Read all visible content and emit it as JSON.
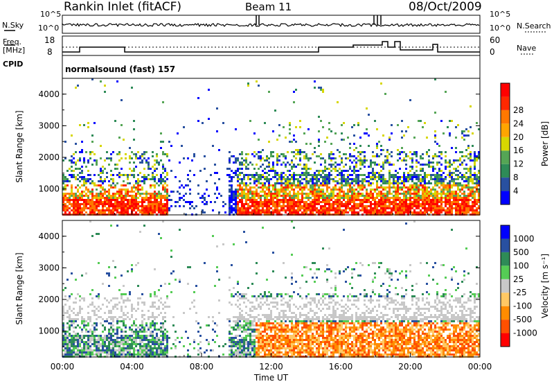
{
  "header": {
    "title": "Rankin Inlet (fitACF)",
    "beam": "Beam 11",
    "date": "08/Oct/2009"
  },
  "panels": {
    "nsky_label": "N.Sky",
    "nsearch_label": "N.Search",
    "freq_label_1": "Freq.",
    "freq_label_2": "[MHz]",
    "nave_label": "Nave",
    "cpid_label": "CPID",
    "cpid_value": "normalsound (fast) 157",
    "nsky_ticks": [
      "10^5",
      "10^0"
    ],
    "nsearch_ticks": [
      "10^5",
      "10^0"
    ],
    "freq_ticks": [
      "18",
      "8"
    ],
    "nave_ticks": [
      "60",
      "0"
    ]
  },
  "chart_data": [
    {
      "type": "heatmap",
      "name": "power",
      "ylabel": "Slant Range [km]",
      "yticks": [
        1000,
        2000,
        3000,
        4000
      ],
      "ylim": [
        180,
        4500
      ],
      "xlim": [
        0,
        24
      ],
      "colorbar_label": "Power [dB]",
      "colorbar_ticks": [
        "4",
        "8",
        "12",
        "16",
        "20",
        "24",
        "28"
      ],
      "colorbar_colors": [
        "#0000ff",
        "#2850a0",
        "#2e8b57",
        "#55a555",
        "#d7d700",
        "#ffa500",
        "#ff7800",
        "#ff2800",
        "#ff0000"
      ]
    },
    {
      "type": "heatmap",
      "name": "velocity",
      "ylabel": "Slant Range [km]",
      "yticks": [
        1000,
        2000,
        3000,
        4000
      ],
      "ylim": [
        180,
        4500
      ],
      "xlim": [
        0,
        24
      ],
      "colorbar_label": "Velocity [m s⁻¹]",
      "colorbar_ticks": [
        "1000",
        "500",
        "100",
        "25",
        "-25",
        "-100",
        "-500",
        "-1000"
      ],
      "colorbar_colors": [
        "#0000ff",
        "#2850a0",
        "#2e8b57",
        "#55cc55",
        "#c8c8c8",
        "#ffc864",
        "#ff8c00",
        "#ff5000",
        "#ff0000"
      ],
      "xlabel": "Time UT",
      "xticks": [
        "00:00",
        "04:00",
        "08:00",
        "12:00",
        "16:00",
        "20:00",
        "00:00"
      ]
    }
  ]
}
